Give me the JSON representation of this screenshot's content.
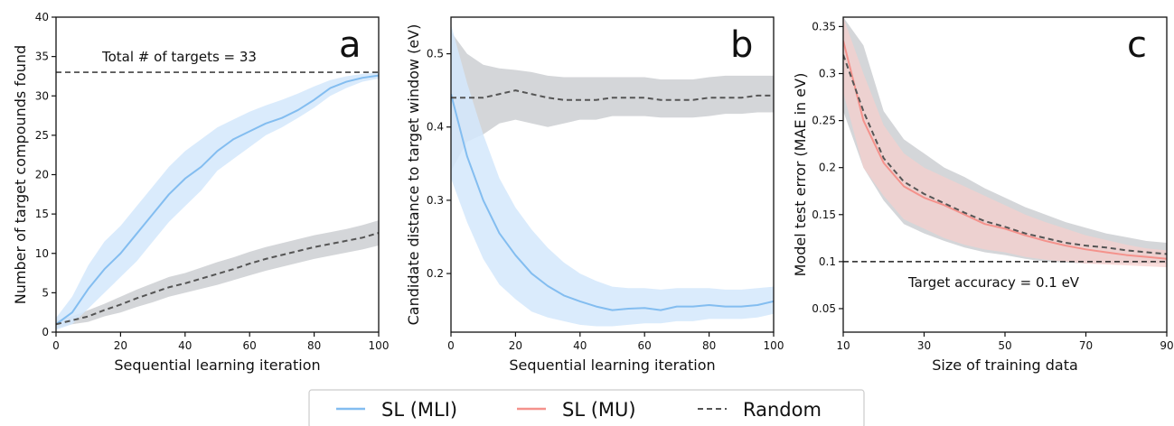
{
  "colors": {
    "sl_mli_line": "#83bdf0",
    "sl_mli_band": "#d4e8fb",
    "sl_mu_line": "#f4928c",
    "sl_mu_band": "#f8cfcc",
    "random_line": "#555555",
    "random_band": "#cdcfd2",
    "target_line": "#222222"
  },
  "legend": {
    "placement": "bottom-center",
    "entries": [
      "SL (MLI)",
      "SL (MU)",
      "Random"
    ]
  },
  "chart_data": [
    {
      "type": "line",
      "panel": "a",
      "xlabel": "Sequential learning iteration",
      "ylabel": "Number of target compounds found",
      "xlim": [
        0,
        100
      ],
      "ylim": [
        0,
        40
      ],
      "xticks": [
        0,
        20,
        40,
        60,
        80,
        100
      ],
      "yticks": [
        0,
        5,
        10,
        15,
        20,
        25,
        30,
        35,
        40
      ],
      "grid": false,
      "hline": {
        "y": 33,
        "label": "Total # of targets = 33"
      },
      "x": [
        0,
        5,
        10,
        15,
        20,
        25,
        30,
        35,
        40,
        45,
        50,
        55,
        60,
        65,
        70,
        75,
        80,
        85,
        90,
        95,
        100
      ],
      "series": [
        {
          "name": "SL (MLI)",
          "values": [
            1,
            2.5,
            5.5,
            8,
            10,
            12.5,
            15,
            17.5,
            19.5,
            21,
            23,
            24.5,
            25.5,
            26.5,
            27.2,
            28.2,
            29.5,
            31,
            31.8,
            32.3,
            32.6
          ],
          "lower": [
            0.3,
            1,
            3,
            5,
            7,
            9,
            11.5,
            14,
            16,
            18,
            20.5,
            22,
            23.5,
            25,
            26,
            27.2,
            28.5,
            30,
            31,
            31.8,
            32.2
          ],
          "upper": [
            1.8,
            4.5,
            8.5,
            11.5,
            13.5,
            16,
            18.5,
            21,
            23,
            24.5,
            26,
            27,
            28,
            28.8,
            29.5,
            30.3,
            31.2,
            32,
            32.5,
            32.8,
            33
          ]
        },
        {
          "name": "Random",
          "values": [
            1,
            1.5,
            2,
            2.8,
            3.5,
            4.3,
            5,
            5.7,
            6.2,
            6.8,
            7.4,
            8,
            8.7,
            9.3,
            9.8,
            10.3,
            10.8,
            11.2,
            11.6,
            12,
            12.6
          ],
          "lower": [
            0.5,
            1,
            1.3,
            2,
            2.5,
            3.2,
            3.8,
            4.5,
            5,
            5.5,
            6,
            6.6,
            7.2,
            7.8,
            8.3,
            8.8,
            9.3,
            9.7,
            10.1,
            10.5,
            11
          ],
          "upper": [
            1.5,
            2,
            2.8,
            3.6,
            4.5,
            5.4,
            6.2,
            7,
            7.5,
            8.2,
            8.9,
            9.5,
            10.2,
            10.8,
            11.3,
            11.8,
            12.3,
            12.7,
            13.1,
            13.6,
            14.2
          ]
        }
      ]
    },
    {
      "type": "line",
      "panel": "b",
      "xlabel": "Sequential learning iteration",
      "ylabel": "Candidate distance to target window (eV)",
      "xlim": [
        0,
        100
      ],
      "ylim": [
        0.12,
        0.55
      ],
      "xticks": [
        0,
        20,
        40,
        60,
        80,
        100
      ],
      "yticks": [
        0.2,
        0.3,
        0.4,
        0.5
      ],
      "grid": false,
      "x": [
        0,
        5,
        10,
        15,
        20,
        25,
        30,
        35,
        40,
        45,
        50,
        55,
        60,
        65,
        70,
        75,
        80,
        85,
        90,
        95,
        100
      ],
      "series": [
        {
          "name": "SL (MLI)",
          "values": [
            0.445,
            0.36,
            0.3,
            0.255,
            0.225,
            0.2,
            0.183,
            0.17,
            0.162,
            0.155,
            0.15,
            0.152,
            0.153,
            0.15,
            0.155,
            0.155,
            0.157,
            0.155,
            0.155,
            0.157,
            0.162
          ],
          "lower": [
            0.33,
            0.27,
            0.22,
            0.185,
            0.165,
            0.148,
            0.14,
            0.135,
            0.13,
            0.128,
            0.128,
            0.13,
            0.132,
            0.132,
            0.135,
            0.135,
            0.138,
            0.138,
            0.138,
            0.14,
            0.145
          ],
          "upper": [
            0.54,
            0.46,
            0.39,
            0.33,
            0.29,
            0.26,
            0.235,
            0.215,
            0.2,
            0.19,
            0.182,
            0.18,
            0.18,
            0.178,
            0.18,
            0.18,
            0.18,
            0.178,
            0.178,
            0.18,
            0.182
          ]
        },
        {
          "name": "Random",
          "values": [
            0.44,
            0.44,
            0.44,
            0.445,
            0.45,
            0.445,
            0.44,
            0.437,
            0.437,
            0.437,
            0.44,
            0.44,
            0.44,
            0.437,
            0.437,
            0.437,
            0.44,
            0.44,
            0.44,
            0.443,
            0.443
          ],
          "lower": [
            0.34,
            0.38,
            0.39,
            0.405,
            0.41,
            0.405,
            0.4,
            0.405,
            0.41,
            0.41,
            0.415,
            0.415,
            0.415,
            0.413,
            0.413,
            0.413,
            0.415,
            0.418,
            0.418,
            0.42,
            0.42
          ],
          "upper": [
            0.53,
            0.5,
            0.485,
            0.48,
            0.478,
            0.475,
            0.47,
            0.468,
            0.468,
            0.468,
            0.468,
            0.468,
            0.468,
            0.465,
            0.465,
            0.465,
            0.468,
            0.47,
            0.47,
            0.47,
            0.47
          ]
        }
      ]
    },
    {
      "type": "line",
      "panel": "c",
      "xlabel": "Size of training data",
      "ylabel": "Model test error (MAE in eV)",
      "xlim": [
        10,
        90
      ],
      "ylim": [
        0.025,
        0.36
      ],
      "xticks": [
        10,
        30,
        50,
        70,
        90
      ],
      "yticks": [
        0.05,
        0.1,
        0.15,
        0.2,
        0.25,
        0.3,
        0.35
      ],
      "grid": false,
      "hline": {
        "y": 0.1,
        "label": "Target accuracy = 0.1 eV"
      },
      "x": [
        10,
        15,
        20,
        25,
        30,
        35,
        40,
        45,
        50,
        55,
        60,
        65,
        70,
        75,
        80,
        85,
        90
      ],
      "series": [
        {
          "name": "SL (MU)",
          "values": [
            0.335,
            0.25,
            0.205,
            0.18,
            0.168,
            0.16,
            0.15,
            0.14,
            0.135,
            0.128,
            0.122,
            0.117,
            0.113,
            0.11,
            0.107,
            0.105,
            0.103
          ],
          "lower": [
            0.28,
            0.2,
            0.17,
            0.145,
            0.135,
            0.125,
            0.118,
            0.113,
            0.11,
            0.105,
            0.102,
            0.1,
            0.098,
            0.097,
            0.096,
            0.095,
            0.094
          ],
          "upper": [
            0.36,
            0.3,
            0.245,
            0.215,
            0.2,
            0.19,
            0.18,
            0.17,
            0.16,
            0.15,
            0.142,
            0.135,
            0.128,
            0.123,
            0.118,
            0.114,
            0.112
          ]
        },
        {
          "name": "Random",
          "values": [
            0.32,
            0.26,
            0.21,
            0.185,
            0.172,
            0.162,
            0.152,
            0.143,
            0.137,
            0.13,
            0.125,
            0.12,
            0.117,
            0.115,
            0.112,
            0.11,
            0.108
          ],
          "lower": [
            0.26,
            0.2,
            0.165,
            0.14,
            0.13,
            0.122,
            0.115,
            0.11,
            0.107,
            0.103,
            0.1,
            0.099,
            0.098,
            0.098,
            0.098,
            0.098,
            0.098
          ],
          "upper": [
            0.36,
            0.33,
            0.26,
            0.23,
            0.215,
            0.2,
            0.19,
            0.178,
            0.168,
            0.158,
            0.15,
            0.142,
            0.136,
            0.13,
            0.126,
            0.122,
            0.12
          ]
        }
      ]
    }
  ]
}
